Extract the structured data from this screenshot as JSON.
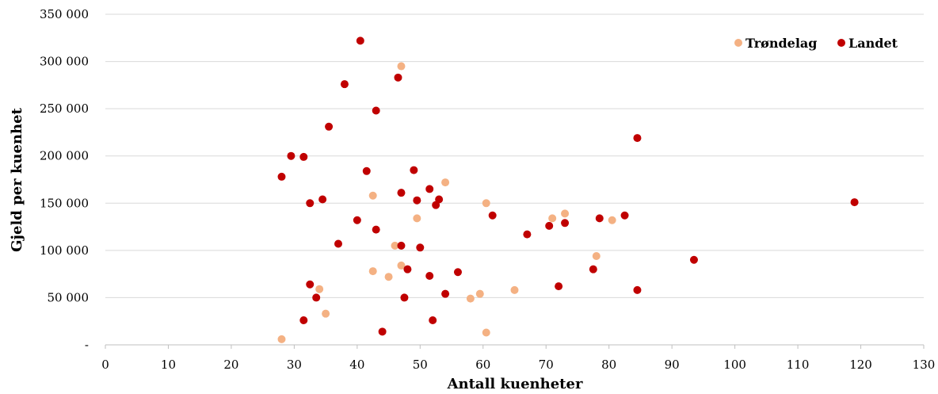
{
  "chart_data": {
    "type": "scatter",
    "xlabel": "Antall kuenheter",
    "ylabel": "Gjeld per kuenhet",
    "xlim": [
      0,
      130
    ],
    "ylim": [
      0,
      350000
    ],
    "x_ticks": [
      0,
      10,
      20,
      30,
      40,
      50,
      60,
      70,
      80,
      90,
      100,
      110,
      120,
      130
    ],
    "x_tick_labels": [
      "0",
      "10",
      "20",
      "30",
      "40",
      "50",
      "60",
      "70",
      "80",
      "90",
      "100",
      "110",
      "120",
      "130"
    ],
    "y_ticks": [
      0,
      50000,
      100000,
      150000,
      200000,
      250000,
      300000,
      350000
    ],
    "y_tick_labels": [
      "-",
      "50 000",
      "100 000",
      "150 000",
      "200 000",
      "250 000",
      "300 000",
      "350 000"
    ],
    "grid": "horizontal",
    "legend_position": "top-right",
    "series": [
      {
        "name": "Trøndelag",
        "color": "#F4B183",
        "points": [
          [
            28,
            6000
          ],
          [
            34,
            59000
          ],
          [
            35,
            33000
          ],
          [
            42.5,
            158000
          ],
          [
            42.5,
            78000
          ],
          [
            45,
            72000
          ],
          [
            46,
            105000
          ],
          [
            47,
            295000
          ],
          [
            47,
            84000
          ],
          [
            49.5,
            134000
          ],
          [
            54,
            172000
          ],
          [
            58,
            49000
          ],
          [
            59.5,
            54000
          ],
          [
            60.5,
            150000
          ],
          [
            60.5,
            13000
          ],
          [
            65,
            58000
          ],
          [
            71,
            134000
          ],
          [
            73,
            139000
          ],
          [
            78,
            94000
          ],
          [
            80.5,
            132000
          ]
        ]
      },
      {
        "name": "Landet",
        "color": "#C00000",
        "points": [
          [
            28,
            178000
          ],
          [
            29.5,
            200000
          ],
          [
            31.5,
            199000
          ],
          [
            31.5,
            26000
          ],
          [
            32.5,
            150000
          ],
          [
            32.5,
            64000
          ],
          [
            33.5,
            50000
          ],
          [
            34.5,
            154000
          ],
          [
            35.5,
            231000
          ],
          [
            37,
            107000
          ],
          [
            38,
            276000
          ],
          [
            40,
            132000
          ],
          [
            40.5,
            322000
          ],
          [
            41.5,
            184000
          ],
          [
            43,
            248000
          ],
          [
            43,
            122000
          ],
          [
            44,
            14000
          ],
          [
            46.5,
            283000
          ],
          [
            47,
            161000
          ],
          [
            47,
            105000
          ],
          [
            47.5,
            50000
          ],
          [
            48,
            80000
          ],
          [
            49,
            185000
          ],
          [
            49.5,
            153000
          ],
          [
            50,
            103000
          ],
          [
            51.5,
            165000
          ],
          [
            51.5,
            73000
          ],
          [
            52,
            26000
          ],
          [
            52.5,
            148000
          ],
          [
            53,
            154000
          ],
          [
            54,
            54000
          ],
          [
            56,
            77000
          ],
          [
            61.5,
            137000
          ],
          [
            67,
            117000
          ],
          [
            70.5,
            126000
          ],
          [
            72,
            62000
          ],
          [
            73,
            129000
          ],
          [
            77.5,
            80000
          ],
          [
            78.5,
            134000
          ],
          [
            82.5,
            137000
          ],
          [
            84.5,
            219000
          ],
          [
            84.5,
            58000
          ],
          [
            93.5,
            90000
          ],
          [
            119,
            151000
          ]
        ]
      }
    ]
  }
}
